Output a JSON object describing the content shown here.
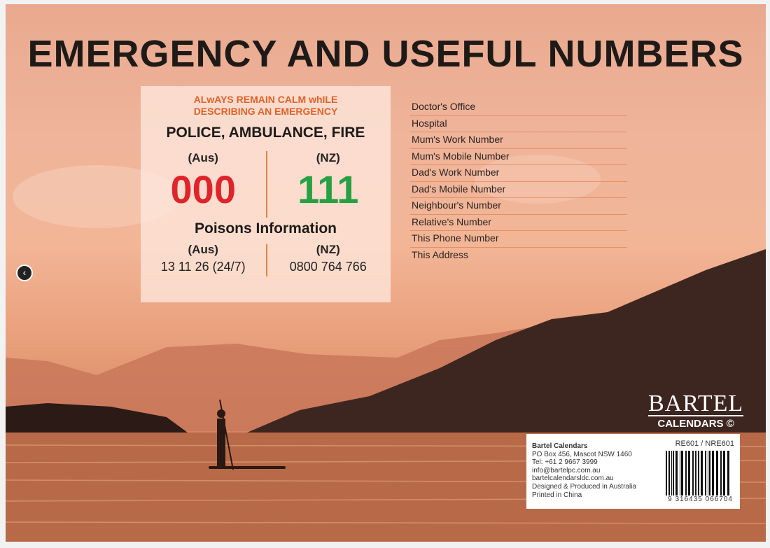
{
  "title": "EMERGENCY AND USEFUL NUMBERS",
  "panel": {
    "warning_line1": "ALwAYS REMAIN CALM whILE",
    "warning_line2": "DESCRIBING AN EMERGENCY",
    "heading": "POLICE, AMBULANCE, FIRE",
    "aus_label": "(Aus)",
    "nz_label": "(NZ)",
    "aus_number": "000",
    "nz_number": "111",
    "aus_color": "#e0242b",
    "nz_color": "#27a042",
    "poisons_heading": "Poisons Information",
    "poisons_aus_label": "(Aus)",
    "poisons_nz_label": "(NZ)",
    "poisons_aus_number": "13 11 26 (24/7)",
    "poisons_nz_number": "0800 764 766"
  },
  "list": [
    "Doctor's Office",
    "Hospital",
    "Mum's Work Number",
    "Mum's Mobile Number",
    "Dad's Work Number",
    "Dad's Mobile Number",
    "Neighbour's Number",
    "Relative's Number",
    "This Phone Number",
    "This Address"
  ],
  "logo": {
    "name": "BARTEL",
    "sub": "CALENDARS ©"
  },
  "info": {
    "company": "Bartel Calendars",
    "lines": [
      "PO Box 456, Mascot NSW 1460",
      "Tel: +61 2 9667 3999",
      "info@bartelpc.com.au",
      "bartelcalendarsldc.com.au",
      "Designed & Produced in Australia",
      "Printed in China"
    ],
    "product_code": "RE601 / NRE601",
    "barcode_number": "9 316435 066704"
  },
  "nav": {
    "back_icon": "chevron-left-icon"
  }
}
